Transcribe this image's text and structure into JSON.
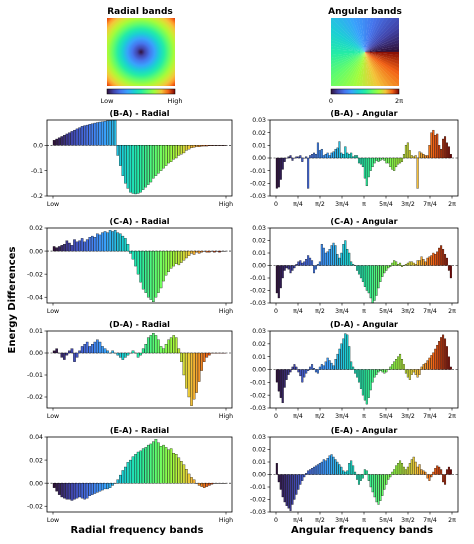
{
  "header": {
    "radial_title": "Radial bands",
    "angular_title": "Angular bands",
    "radial_cb_low": "Low",
    "radial_cb_high": "High",
    "angular_cb_low": "0",
    "angular_cb_high": "2π"
  },
  "labels": {
    "ylabel": "Energy Differences",
    "xlabel_radial": "Radial frequency bands",
    "xlabel_angular": "Angular frequency bands",
    "radial_xticks": [
      "Low",
      "High"
    ],
    "angular_xticks": [
      "0",
      "π/4",
      "π/2",
      "3π/4",
      "π",
      "5π/4",
      "3π/2",
      "7π/4",
      "2π"
    ]
  },
  "chart_data": [
    {
      "type": "bar",
      "title": "(B-A) - Radial",
      "ylim": [
        -0.2,
        0.1
      ],
      "yticks": [
        "0.0",
        "-0.1",
        "-0.2"
      ],
      "values": [
        0.02,
        0.025,
        0.03,
        0.035,
        0.04,
        0.045,
        0.05,
        0.055,
        0.06,
        0.065,
        0.07,
        0.075,
        0.078,
        0.08,
        0.083,
        0.085,
        0.088,
        0.09,
        0.092,
        0.093,
        0.095,
        0.097,
        0.098,
        0.1,
        0.1,
        -0.04,
        -0.08,
        -0.12,
        -0.15,
        -0.17,
        -0.185,
        -0.19,
        -0.192,
        -0.19,
        -0.185,
        -0.175,
        -0.165,
        -0.155,
        -0.145,
        -0.13,
        -0.12,
        -0.11,
        -0.1,
        -0.09,
        -0.08,
        -0.07,
        -0.065,
        -0.055,
        -0.05,
        -0.04,
        -0.035,
        -0.03,
        -0.02,
        -0.015,
        -0.01,
        -0.008,
        -0.005,
        -0.006,
        -0.004,
        -0.003,
        -0.003,
        -0.002,
        -0.002,
        -0.001,
        -0.001,
        -0.001,
        -0.001,
        0.0
      ]
    },
    {
      "type": "bar",
      "title": "(B-A) - Angular",
      "ylim": [
        -0.03,
        0.03
      ],
      "yticks": [
        "0.03",
        "0.02",
        "0.01",
        "0.00",
        "-0.01",
        "-0.02",
        "-0.03"
      ],
      "values": [
        -0.024,
        -0.023,
        -0.017,
        -0.009,
        -0.003,
        0.0,
        0.001,
        0.002,
        -0.002,
        0.0,
        0.001,
        0.001,
        0.002,
        -0.003,
        0.0,
        0.001,
        -0.024,
        0.002,
        0.003,
        0.004,
        0.003,
        0.012,
        0.006,
        0.007,
        0.002,
        0.003,
        0.004,
        0.002,
        0.004,
        0.005,
        0.007,
        0.008,
        0.013,
        0.004,
        0.003,
        0.009,
        0.004,
        0.003,
        0.004,
        0.001,
        0.002,
        0.002,
        -0.004,
        -0.005,
        -0.007,
        -0.016,
        -0.022,
        -0.015,
        -0.01,
        -0.007,
        -0.004,
        -0.002,
        -0.003,
        -0.002,
        -0.001,
        -0.002,
        -0.004,
        -0.004,
        -0.007,
        -0.009,
        -0.01,
        -0.007,
        -0.005,
        -0.004,
        -0.003,
        0.003,
        0.01,
        0.012,
        0.006,
        0.002,
        0.001,
        0.002,
        -0.024,
        0.005,
        0.004,
        0.003,
        0.002,
        0.002,
        0.01,
        0.02,
        0.022,
        0.018,
        0.019,
        0.01,
        0.007,
        0.015,
        0.017,
        0.012,
        0.009,
        0.003
      ]
    },
    {
      "type": "bar",
      "title": "(C-A) - Radial",
      "ylim": [
        -0.045,
        0.02
      ],
      "yticks": [
        "0.02",
        "0.00",
        "-0.02",
        "-0.04"
      ],
      "values": [
        0.004,
        0.003,
        0.004,
        0.005,
        0.006,
        0.009,
        0.007,
        0.005,
        0.01,
        0.008,
        0.009,
        0.011,
        0.008,
        0.01,
        0.012,
        0.013,
        0.012,
        0.015,
        0.014,
        0.016,
        0.017,
        0.016,
        0.018,
        0.017,
        0.018,
        0.016,
        0.015,
        0.013,
        0.011,
        0.006,
        -0.002,
        -0.007,
        -0.013,
        -0.02,
        -0.027,
        -0.033,
        -0.036,
        -0.04,
        -0.042,
        -0.044,
        -0.04,
        -0.036,
        -0.032,
        -0.026,
        -0.021,
        -0.018,
        -0.015,
        -0.013,
        -0.011,
        -0.012,
        -0.01,
        -0.008,
        -0.006,
        -0.004,
        -0.002,
        -0.003,
        -0.001,
        -0.002,
        -0.001,
        0.0,
        -0.001,
        -0.001,
        0.0,
        -0.001,
        0.0,
        -0.001,
        0.0,
        0.0
      ]
    },
    {
      "type": "bar",
      "title": "(C-A) - Angular",
      "ylim": [
        -0.03,
        0.03
      ],
      "yticks": [
        "0.03",
        "0.02",
        "0.01",
        "0.00",
        "-0.01",
        "-0.02",
        "-0.03"
      ],
      "values": [
        -0.022,
        -0.026,
        -0.018,
        -0.01,
        -0.004,
        -0.002,
        -0.003,
        -0.006,
        -0.004,
        -0.002,
        0.001,
        0.003,
        0.004,
        0.002,
        0.003,
        0.005,
        0.008,
        0.006,
        0.004,
        -0.006,
        -0.003,
        0.001,
        0.003,
        0.017,
        0.014,
        0.01,
        0.011,
        0.013,
        0.016,
        0.018,
        0.016,
        0.009,
        0.006,
        0.01,
        0.017,
        0.02,
        0.013,
        0.01,
        0.003,
        0.001,
        0.0,
        -0.004,
        -0.007,
        -0.01,
        -0.013,
        -0.017,
        -0.02,
        -0.022,
        -0.026,
        -0.03,
        -0.028,
        -0.024,
        -0.018,
        -0.013,
        -0.009,
        -0.006,
        -0.004,
        -0.002,
        -0.001,
        0.002,
        0.004,
        0.003,
        0.001,
        0.002,
        -0.001,
        0.0,
        0.001,
        0.002,
        0.003,
        0.003,
        0.002,
        0.001,
        0.004,
        0.004,
        0.007,
        0.005,
        0.003,
        0.006,
        0.007,
        0.008,
        0.01,
        0.009,
        0.011,
        0.014,
        0.016,
        0.013,
        0.009,
        0.006,
        -0.004,
        -0.01
      ]
    },
    {
      "type": "bar",
      "title": "(D-A) - Radial",
      "ylim": [
        -0.025,
        0.01
      ],
      "yticks": [
        "0.01",
        "0.00",
        "-0.01",
        "-0.02"
      ],
      "values": [
        0.001,
        0.002,
        0.0,
        -0.002,
        -0.003,
        -0.001,
        0.001,
        0.002,
        -0.004,
        -0.002,
        0.001,
        0.003,
        0.004,
        0.005,
        0.003,
        0.004,
        0.005,
        0.006,
        0.005,
        0.003,
        0.002,
        0.001,
        0.0,
        0.001,
        0.0,
        -0.001,
        -0.002,
        -0.003,
        -0.002,
        -0.001,
        0.0,
        0.001,
        0.0,
        -0.002,
        -0.001,
        0.002,
        0.004,
        0.007,
        0.008,
        0.009,
        0.008,
        0.006,
        0.003,
        0.002,
        0.004,
        0.006,
        0.007,
        0.008,
        0.007,
        0.002,
        -0.004,
        -0.01,
        -0.016,
        -0.02,
        -0.024,
        -0.021,
        -0.018,
        -0.013,
        -0.008,
        -0.004,
        -0.002,
        -0.001,
        0.0,
        0.0,
        0.0,
        0.0,
        0.0,
        0.0
      ]
    },
    {
      "type": "bar",
      "title": "(D-A) - Angular",
      "ylim": [
        -0.03,
        0.03
      ],
      "yticks": [
        "0.03",
        "0.02",
        "0.01",
        "0.00",
        "-0.01",
        "-0.02",
        "-0.03"
      ],
      "values": [
        -0.01,
        -0.017,
        -0.022,
        -0.026,
        -0.014,
        -0.008,
        -0.004,
        -0.002,
        0.002,
        0.004,
        0.002,
        -0.002,
        -0.005,
        -0.01,
        -0.006,
        -0.003,
        -0.001,
        0.002,
        0.004,
        0.001,
        -0.002,
        -0.003,
        0.002,
        0.004,
        0.003,
        0.006,
        0.009,
        0.007,
        0.005,
        0.003,
        0.008,
        0.012,
        0.016,
        0.02,
        0.024,
        0.028,
        0.027,
        0.018,
        0.006,
        0.002,
        -0.003,
        -0.006,
        -0.01,
        -0.015,
        -0.02,
        -0.024,
        -0.027,
        -0.022,
        -0.016,
        -0.01,
        -0.006,
        -0.004,
        -0.002,
        -0.001,
        -0.002,
        -0.003,
        -0.002,
        0.0,
        0.002,
        0.004,
        0.006,
        0.008,
        0.01,
        0.012,
        0.008,
        0.004,
        -0.003,
        -0.006,
        -0.008,
        -0.004,
        -0.002,
        -0.004,
        -0.006,
        -0.004,
        0.002,
        0.004,
        0.005,
        0.007,
        0.009,
        0.011,
        0.013,
        0.016,
        0.019,
        0.022,
        0.025,
        0.027,
        0.024,
        0.018,
        0.01,
        0.002
      ]
    },
    {
      "type": "bar",
      "title": "(E-A) - Radial",
      "ylim": [
        -0.025,
        0.04
      ],
      "yticks": [
        "0.04",
        "0.02",
        "0.00",
        "-0.02"
      ],
      "values": [
        -0.004,
        -0.007,
        -0.01,
        -0.012,
        -0.013,
        -0.014,
        -0.014,
        -0.015,
        -0.014,
        -0.013,
        -0.012,
        -0.013,
        -0.014,
        -0.013,
        -0.011,
        -0.01,
        -0.009,
        -0.008,
        -0.007,
        -0.006,
        -0.005,
        -0.005,
        -0.004,
        -0.002,
        0.0,
        0.003,
        0.007,
        0.011,
        0.014,
        0.018,
        0.02,
        0.023,
        0.025,
        0.027,
        0.028,
        0.03,
        0.031,
        0.033,
        0.034,
        0.036,
        0.038,
        0.035,
        0.032,
        0.033,
        0.031,
        0.029,
        0.03,
        0.026,
        0.025,
        0.022,
        0.019,
        0.016,
        0.012,
        0.008,
        0.005,
        0.003,
        0.0,
        -0.002,
        -0.003,
        -0.004,
        -0.003,
        -0.002,
        -0.001,
        0.0,
        0.0,
        0.0,
        0.0,
        0.0
      ]
    },
    {
      "type": "bar",
      "title": "(E-A) - Angular",
      "ylim": [
        -0.03,
        0.03
      ],
      "yticks": [
        "0.03",
        "0.02",
        "0.01",
        "0.00",
        "-0.01",
        "-0.02",
        "-0.03"
      ],
      "values": [
        0.009,
        -0.006,
        -0.012,
        -0.018,
        -0.022,
        -0.025,
        -0.027,
        -0.029,
        -0.024,
        -0.02,
        -0.016,
        -0.012,
        -0.008,
        -0.005,
        -0.002,
        0.001,
        0.003,
        0.004,
        0.005,
        0.006,
        0.007,
        0.008,
        0.009,
        0.01,
        0.012,
        0.011,
        0.013,
        0.015,
        0.016,
        0.014,
        0.012,
        0.01,
        0.008,
        0.006,
        0.003,
        0.002,
        0.003,
        0.009,
        0.011,
        0.007,
        0.002,
        -0.004,
        -0.008,
        -0.005,
        -0.003,
        0.004,
        0.003,
        -0.005,
        -0.01,
        -0.014,
        -0.018,
        -0.022,
        -0.024,
        -0.021,
        -0.017,
        -0.012,
        -0.008,
        -0.004,
        -0.002,
        0.002,
        0.004,
        0.007,
        0.009,
        0.011,
        0.009,
        0.006,
        0.004,
        0.006,
        0.009,
        0.012,
        0.014,
        0.01,
        0.006,
        0.008,
        0.004,
        0.003,
        0.002,
        -0.003,
        -0.005,
        -0.002,
        0.002,
        0.005,
        0.007,
        0.006,
        0.004,
        -0.006,
        -0.008,
        0.004,
        0.006,
        0.004
      ]
    }
  ]
}
